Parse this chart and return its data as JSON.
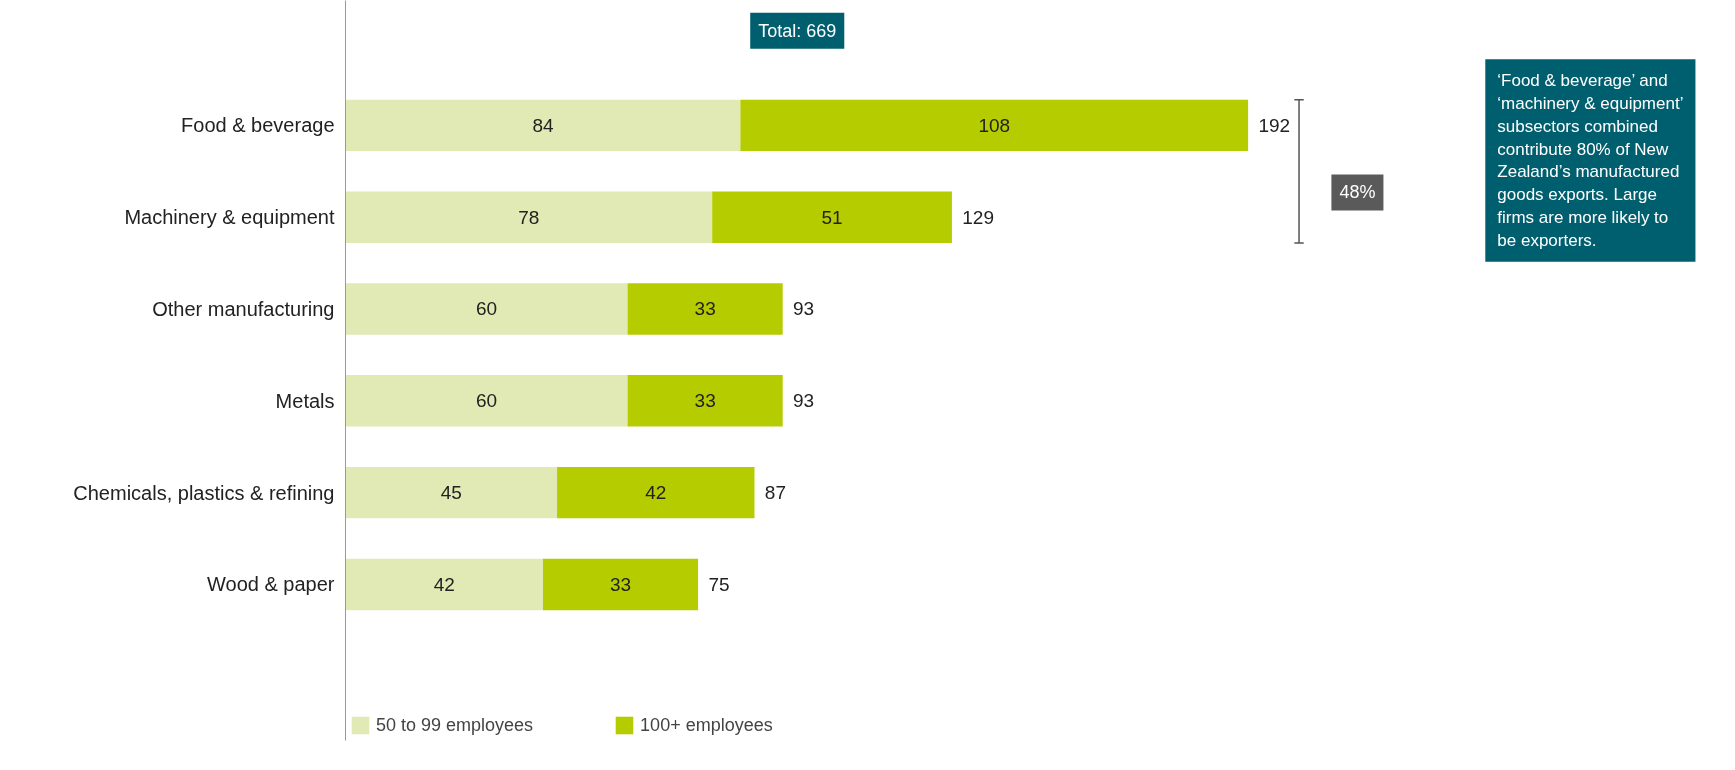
{
  "chart_data": {
    "type": "bar",
    "orientation": "horizontal",
    "stacked": true,
    "data_labels": true,
    "legend": "bottom",
    "grid": false,
    "categories": [
      "Food & beverage",
      "Machinery & equipment",
      "Other manufacturing",
      "Metals",
      "Chemicals, plastics & refining",
      "Wood & paper"
    ],
    "series": [
      {
        "name": "50 to 99 employees",
        "color": "#e1e9b5",
        "values": [
          84,
          78,
          60,
          60,
          45,
          42
        ]
      },
      {
        "name": "100+ employees",
        "color": "#b5cc00",
        "values": [
          108,
          51,
          33,
          33,
          42,
          33
        ]
      }
    ],
    "totals": [
      "192",
      "129",
      "93",
      "93",
      "87",
      "75"
    ],
    "annotations": [
      "Total: 669",
      "48%",
      "‘Food & beverage’ and ‘machinery & equipment’ subsectors combined contribute 80% of New Zealand’s manufactured goods exports. Large firms are more likely to be exporters."
    ]
  }
}
